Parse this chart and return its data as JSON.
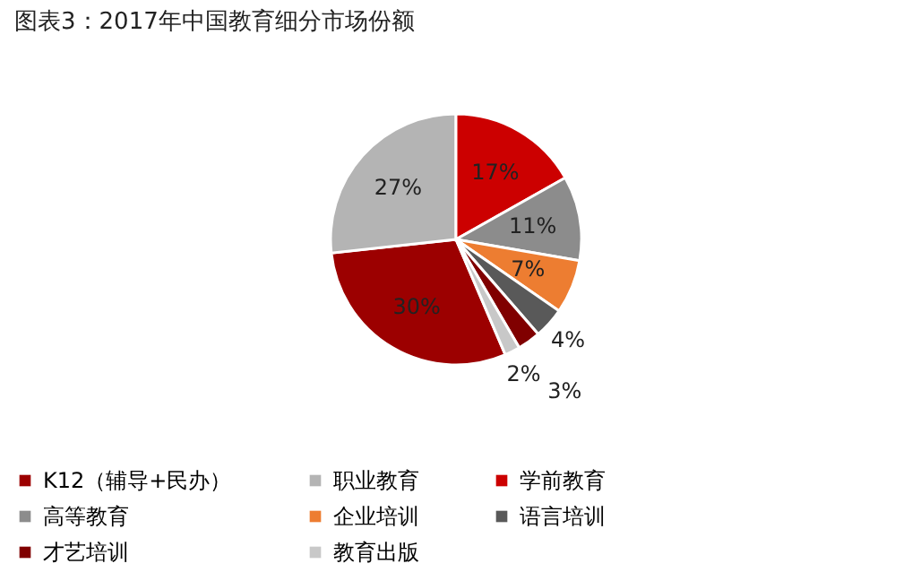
{
  "chart_data": {
    "type": "pie",
    "title": "图表3：2017年中国教育细分市场份额",
    "categories": [
      "K12（辅导+民办）",
      "职业教育",
      "学前教育",
      "高等教育",
      "企业培训",
      "语言培训",
      "才艺培训",
      "教育出版"
    ],
    "values": [
      30,
      27,
      17,
      11,
      7,
      4,
      3,
      2
    ],
    "colors": [
      "#9c0000",
      "#b4b4b4",
      "#cc0000",
      "#8c8c8c",
      "#ed7d31",
      "#595959",
      "#800000",
      "#c8c8c8"
    ],
    "value_labels": [
      "30%",
      "27%",
      "17%",
      "11%",
      "7%",
      "4%",
      "3%",
      "2%"
    ],
    "legend": "bottom"
  }
}
